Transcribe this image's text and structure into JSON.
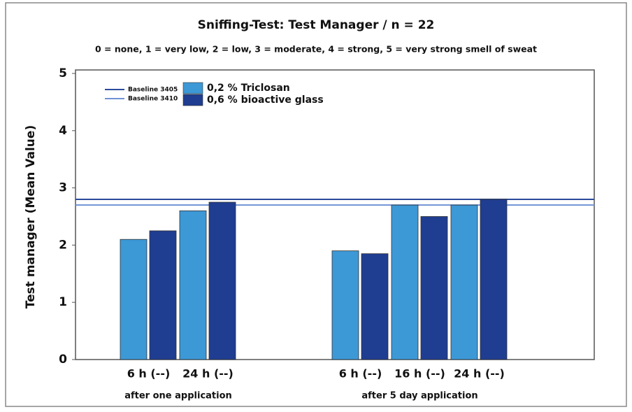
{
  "chart_data": {
    "type": "bar",
    "title": "Sniffing-Test: Test Manager / n = 22",
    "subtitle": "0 = none, 1 = very low, 2 = low, 3 = moderate, 4 = strong, 5 = very strong smell of sweat",
    "y_label": "Test manager (Mean Value)",
    "groups": [
      {
        "label": "after one application",
        "categories": [
          "6 h (--)",
          "24 h (--)"
        ]
      },
      {
        "label": "after 5 day application",
        "categories": [
          "6 h (--)",
          "16 h (--)",
          "24 h (--)"
        ]
      }
    ],
    "series": [
      {
        "name": "0,2 % Triclosan",
        "color": "#3d98d6",
        "values": [
          2.1,
          2.6,
          1.9,
          2.7,
          2.7
        ]
      },
      {
        "name": "0,6 % bioactive glass",
        "color": "#1f3d91",
        "values": [
          2.25,
          2.75,
          1.85,
          2.5,
          2.8
        ]
      }
    ],
    "reference_lines": [
      {
        "name": "Baseline 3405",
        "value": 2.8,
        "color": "#2a4a9c"
      },
      {
        "name": "Baseline 3410",
        "value": 2.7,
        "color": "#6f92d4"
      }
    ],
    "ylim": [
      0,
      5
    ],
    "yticks": [
      0,
      1,
      2,
      3,
      4,
      5
    ]
  }
}
